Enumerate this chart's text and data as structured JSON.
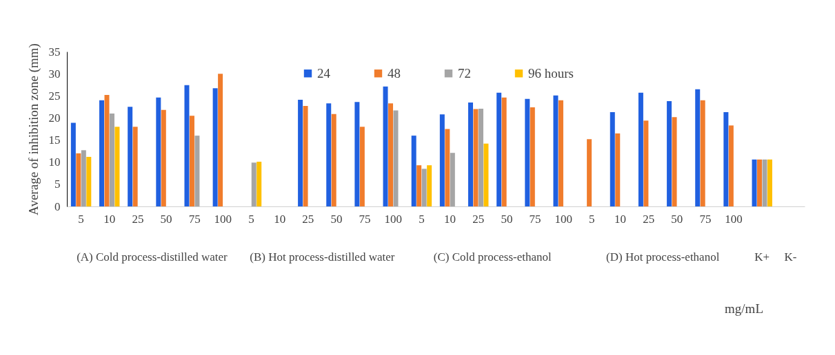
{
  "chart_data": {
    "type": "bar",
    "categories": [
      "5",
      "10",
      "25",
      "50",
      "75",
      "100",
      "5",
      "10",
      "25",
      "50",
      "75",
      "100",
      "5",
      "10",
      "25",
      "50",
      "75",
      "100",
      "5",
      "10",
      "25",
      "50",
      "75",
      "100",
      null,
      null
    ],
    "series": [
      {
        "name": "24",
        "color": "#2060e0",
        "values": [
          18.9,
          24,
          22.5,
          24.6,
          27.4,
          26.7,
          null,
          null,
          24.1,
          23.3,
          23.6,
          27.1,
          16,
          20.8,
          23.5,
          25.7,
          24.3,
          25.1,
          null,
          21.3,
          25.7,
          23.8,
          26.5,
          21.3,
          10.6,
          null
        ]
      },
      {
        "name": "48",
        "color": "#f07c2c",
        "values": [
          12,
          25.2,
          18,
          21.8,
          20.5,
          30,
          null,
          null,
          22.7,
          20.9,
          18,
          23.3,
          9.3,
          17.5,
          22,
          24.6,
          22.4,
          24,
          15.2,
          16.5,
          19.4,
          20.2,
          24,
          18.3,
          10.6,
          null
        ]
      },
      {
        "name": "72",
        "color": "#a5a5a5",
        "values": [
          12.7,
          21,
          null,
          null,
          16,
          null,
          9.9,
          null,
          null,
          null,
          null,
          21.7,
          8.5,
          12.1,
          22.1,
          null,
          null,
          null,
          null,
          null,
          null,
          null,
          null,
          null,
          10.6,
          null
        ]
      },
      {
        "name": "96 hours",
        "color": "#ffc000",
        "values": [
          11.2,
          18,
          null,
          null,
          null,
          null,
          10.1,
          null,
          null,
          null,
          null,
          null,
          9.3,
          null,
          14.2,
          null,
          null,
          null,
          null,
          null,
          null,
          null,
          null,
          null,
          10.6,
          null
        ]
      }
    ],
    "ylabel": "Average of inhibition zone (mm)",
    "ylim": [
      0,
      35
    ],
    "yticks": [
      0,
      5,
      10,
      15,
      20,
      25,
      30,
      35
    ],
    "annotations": [
      "(A) Cold process-distilled water",
      "(B) Hot process-distilled water",
      "(C) Cold process-ethanol",
      "(D) Hot process-ethanol",
      "K+",
      "K-",
      "mg/mL"
    ],
    "grid": false,
    "legend": "top"
  }
}
